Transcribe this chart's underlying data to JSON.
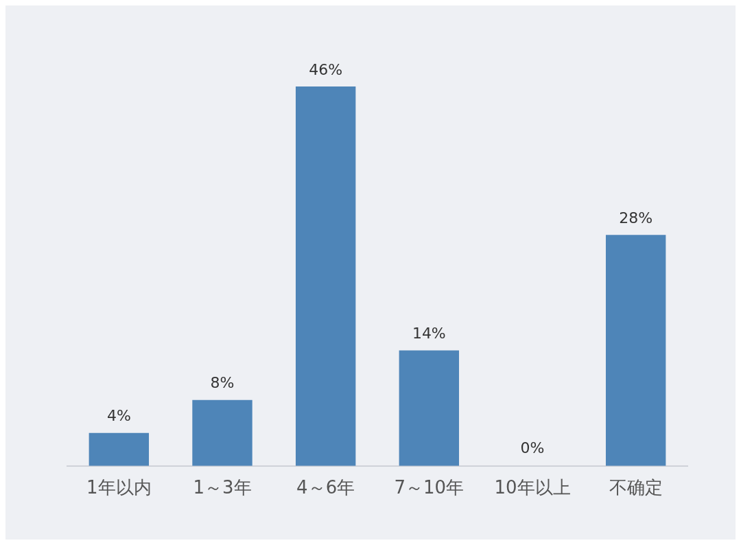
{
  "chart_data": {
    "type": "bar",
    "categories": [
      "1年以内",
      "1～3年",
      "4～6年",
      "7～10年",
      "10年以上",
      "不确定"
    ],
    "values": [
      4,
      8,
      46,
      14,
      0,
      28
    ],
    "value_labels": [
      "4%",
      "8%",
      "46%",
      "14%",
      "0%",
      "28%"
    ],
    "color": "#4e85b8"
  }
}
